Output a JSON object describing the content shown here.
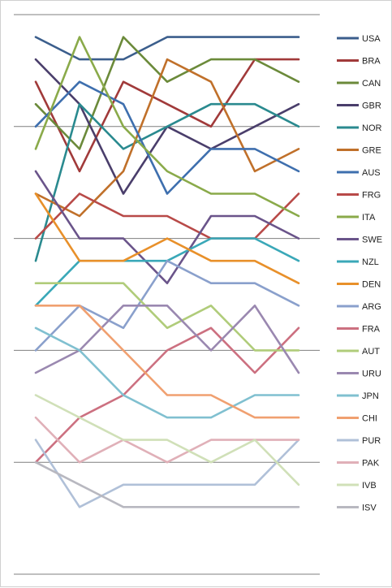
{
  "chart_data": {
    "type": "line",
    "title": "",
    "xlabel": "",
    "ylabel": "",
    "x": [
      1,
      2,
      3,
      4,
      5,
      6,
      7
    ],
    "ylim": [
      0,
      24
    ],
    "gridlines": [
      0,
      5,
      10,
      15,
      20,
      25
    ],
    "grid": true,
    "legend_position": "right",
    "series": [
      {
        "name": "USA",
        "color": "#3b5e8c",
        "values": [
          24,
          23,
          23,
          24,
          24,
          24,
          24
        ]
      },
      {
        "name": "BRA",
        "color": "#a13a3a",
        "values": [
          22,
          18,
          22,
          21,
          20,
          23,
          23
        ]
      },
      {
        "name": "CAN",
        "color": "#6b8a3a",
        "values": [
          21,
          19,
          24,
          22,
          23,
          23,
          22
        ]
      },
      {
        "name": "GBR",
        "color": "#4a3e6b",
        "values": [
          23,
          21,
          17,
          20,
          19,
          20,
          21
        ]
      },
      {
        "name": "NOR",
        "color": "#2a8a8f",
        "values": [
          14,
          21,
          19,
          20,
          21,
          21,
          20
        ]
      },
      {
        "name": "GRE",
        "color": "#c0702a",
        "values": [
          17,
          16,
          18,
          23,
          22,
          18,
          19
        ]
      },
      {
        "name": "AUS",
        "color": "#3e6fae",
        "values": [
          20,
          22,
          21,
          17,
          19,
          19,
          18
        ]
      },
      {
        "name": "FRG",
        "color": "#b84a48",
        "values": [
          15,
          17,
          16,
          16,
          15,
          15,
          17
        ]
      },
      {
        "name": "ITA",
        "color": "#8aaa4a",
        "values": [
          19,
          24,
          20,
          18,
          17,
          17,
          16
        ]
      },
      {
        "name": "SWE",
        "color": "#6a548a",
        "values": [
          18,
          15,
          15,
          13,
          16,
          16,
          15
        ]
      },
      {
        "name": "NZL",
        "color": "#3aa8b8",
        "values": [
          12,
          14,
          14,
          14,
          15,
          15,
          14
        ]
      },
      {
        "name": "DEN",
        "color": "#e8902a",
        "values": [
          17,
          14,
          14,
          15,
          14,
          14,
          13
        ]
      },
      {
        "name": "ARG",
        "color": "#8aa0cc",
        "values": [
          10,
          12,
          11,
          14,
          13,
          13,
          12
        ]
      },
      {
        "name": "FRA",
        "color": "#cc7080",
        "values": [
          5,
          7,
          8,
          10,
          11,
          9,
          11
        ]
      },
      {
        "name": "AUT",
        "color": "#b0cc7a",
        "values": [
          13,
          13,
          13,
          11,
          12,
          10,
          10
        ]
      },
      {
        "name": "URU",
        "color": "#9a88b0",
        "values": [
          9,
          10,
          12,
          12,
          10,
          12,
          9
        ]
      },
      {
        "name": "JPN",
        "color": "#80c0d0",
        "values": [
          11,
          10,
          8,
          7,
          7,
          8,
          8
        ]
      },
      {
        "name": "CHI",
        "color": "#f0a070",
        "values": [
          12,
          12,
          10,
          8,
          8,
          7,
          7
        ]
      },
      {
        "name": "PUR",
        "color": "#b0c0d8",
        "values": [
          6,
          3,
          4,
          4,
          4,
          4,
          6
        ]
      },
      {
        "name": "PAK",
        "color": "#e0b0b8",
        "values": [
          7,
          5,
          6,
          5,
          6,
          6,
          6
        ]
      },
      {
        "name": "IVB",
        "color": "#d0e0b8",
        "values": [
          8,
          7,
          6,
          6,
          5,
          6,
          4
        ]
      },
      {
        "name": "ISV",
        "color": "#b8b8c0",
        "values": [
          5,
          4,
          3,
          3,
          3,
          3,
          3
        ]
      }
    ]
  }
}
